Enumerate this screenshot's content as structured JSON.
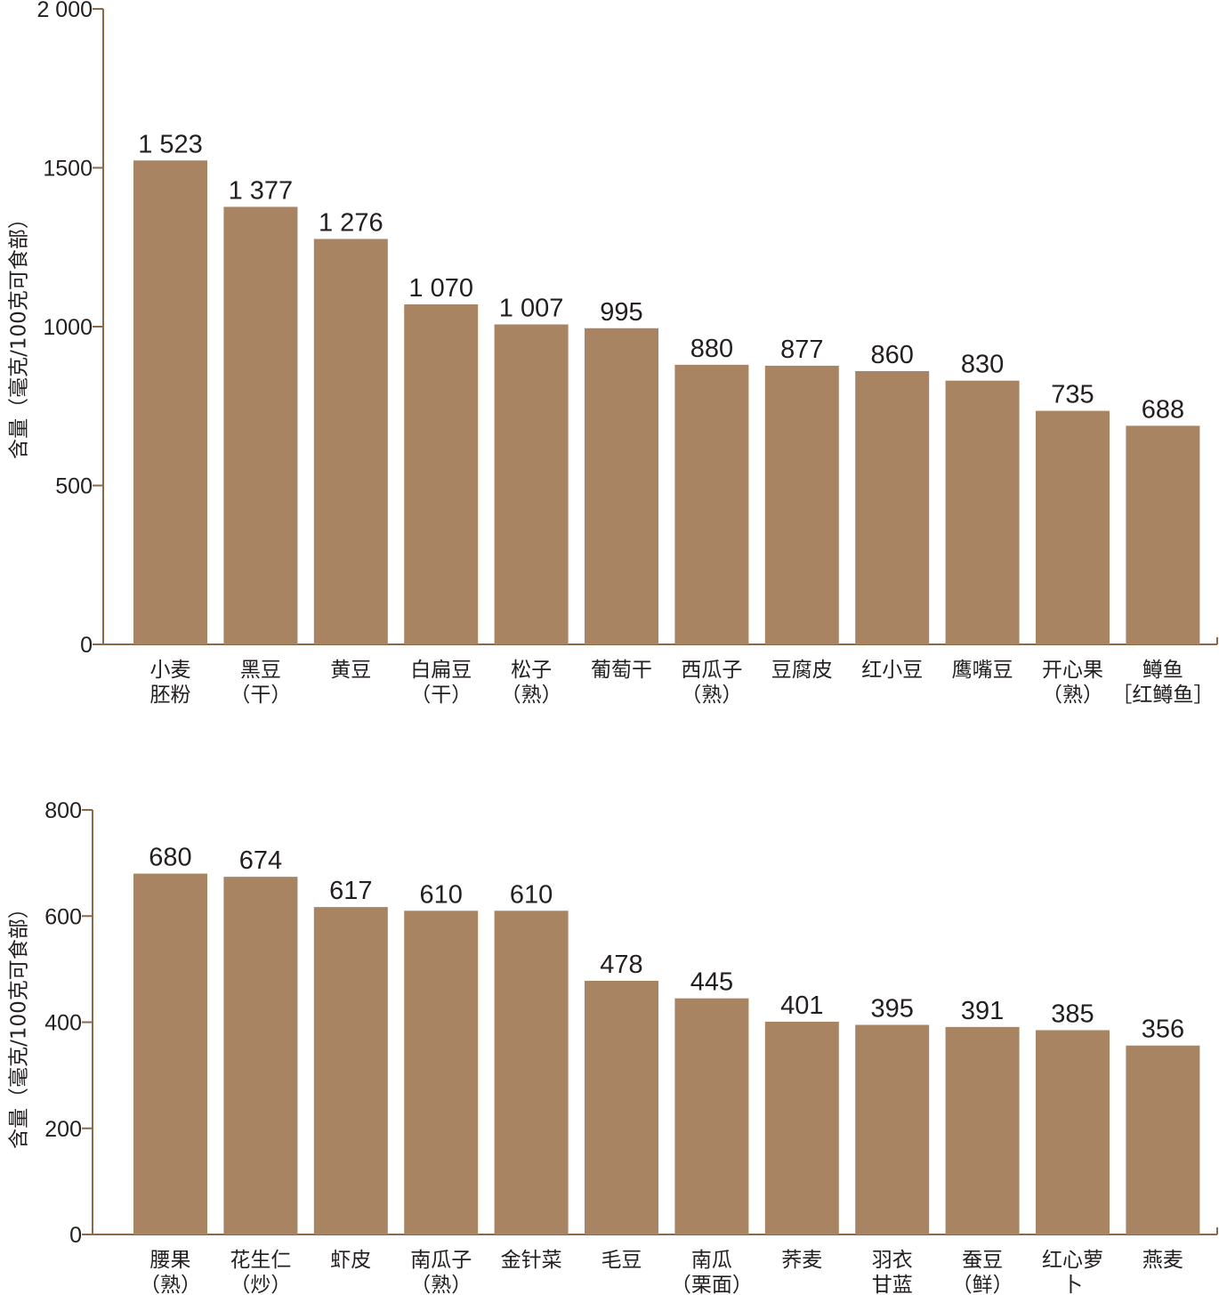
{
  "colors": {
    "bar": "#a98463",
    "axis": "#8a6848"
  },
  "chart_data": [
    {
      "type": "bar",
      "ylabel": "含量（毫克/100克可食部）",
      "ylim": [
        0,
        2000
      ],
      "yticks": [
        0,
        500,
        1000,
        1500,
        2000
      ],
      "ytick_labels": [
        "0",
        "500",
        "1000",
        "1500",
        "2 000"
      ],
      "categories": [
        [
          "小麦",
          "胚粉"
        ],
        [
          "黑豆",
          "（干）"
        ],
        [
          "黄豆"
        ],
        [
          "白扁豆",
          "（干）"
        ],
        [
          "松子",
          "（熟）"
        ],
        [
          "葡萄干"
        ],
        [
          "西瓜子",
          "（熟）"
        ],
        [
          "豆腐皮"
        ],
        [
          "红小豆"
        ],
        [
          "鹰嘴豆"
        ],
        [
          "开心果",
          "（熟）"
        ],
        [
          "鳟鱼",
          "［红鳟鱼］"
        ]
      ],
      "values": [
        1523,
        1377,
        1276,
        1070,
        1007,
        995,
        880,
        877,
        860,
        830,
        735,
        688
      ],
      "value_labels": [
        "1 523",
        "1 377",
        "1 276",
        "1 070",
        "1 007",
        "995",
        "880",
        "877",
        "860",
        "830",
        "735",
        "688"
      ]
    },
    {
      "type": "bar",
      "ylabel": "含量（毫克/100克可食部）",
      "ylim": [
        0,
        800
      ],
      "yticks": [
        0,
        200,
        400,
        600,
        800
      ],
      "ytick_labels": [
        "0",
        "200",
        "400",
        "600",
        "800"
      ],
      "categories": [
        [
          "腰果",
          "（熟）"
        ],
        [
          "花生仁",
          "（炒）"
        ],
        [
          "虾皮"
        ],
        [
          "南瓜子",
          "（熟）"
        ],
        [
          "金针菜"
        ],
        [
          "毛豆"
        ],
        [
          "南瓜",
          "（栗面）"
        ],
        [
          "荞麦"
        ],
        [
          "羽衣",
          "甘蓝"
        ],
        [
          "蚕豆",
          "（鲜）"
        ],
        [
          "红心萝",
          "卜"
        ],
        [
          "燕麦"
        ]
      ],
      "values": [
        680,
        674,
        617,
        610,
        610,
        478,
        445,
        401,
        395,
        391,
        385,
        356
      ],
      "value_labels": [
        "680",
        "674",
        "617",
        "610",
        "610",
        "478",
        "445",
        "401",
        "395",
        "391",
        "385",
        "356"
      ]
    }
  ]
}
